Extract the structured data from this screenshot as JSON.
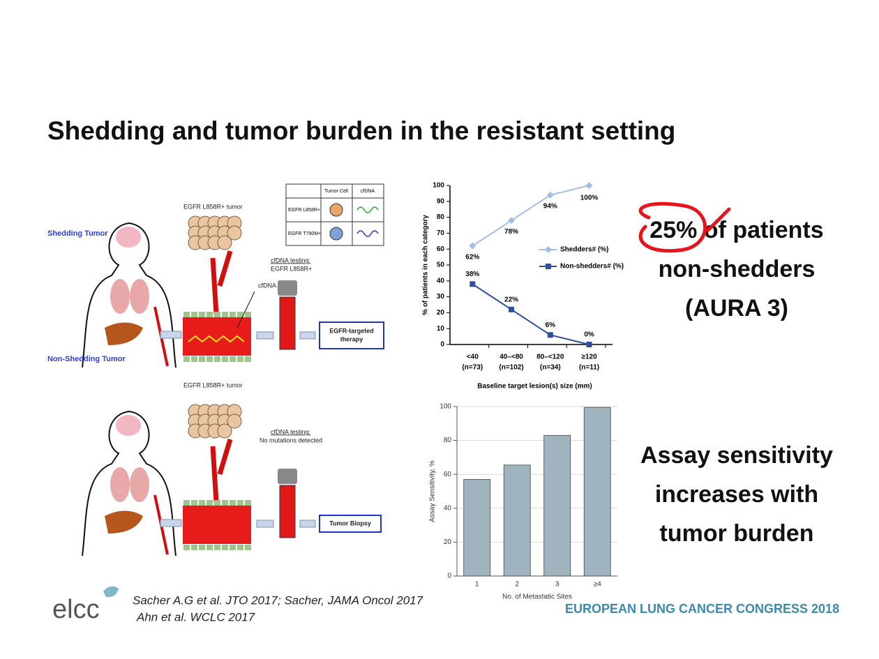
{
  "title": "Shedding and tumor burden in the resistant setting",
  "diagram": {
    "panels": [
      {
        "label": "Shedding Tumor",
        "tumor": "EGFR L858R+ tumor",
        "cfdna": "cfDNA",
        "testing": "cfDNA testing:",
        "result": "EGFR L858R+",
        "action": [
          "EGFR-targeted",
          "therapy"
        ]
      },
      {
        "label": "Non-Shedding Tumor",
        "tumor": "EGFR L858R+ tumor",
        "testing": "cfDNA testing:",
        "result": "No mutations detected",
        "action": [
          "Tumor Biopsy"
        ]
      }
    ],
    "legend_table": {
      "columns": [
        "Tumor Cell",
        "cfDNA"
      ],
      "rows": [
        "EGFR L858R+",
        "EGFR T790M+"
      ]
    }
  },
  "chart_data": [
    {
      "type": "line",
      "categories": [
        "<40",
        "40–<80",
        "80–<120",
        "≥120"
      ],
      "category_counts": [
        "(n=73)",
        "(n=102)",
        "(n=34)",
        "(n=11)"
      ],
      "xlabel": "Baseline target lesion(s) size (mm)",
      "ylabel": "% of patients in each category",
      "ylim": [
        0,
        100
      ],
      "yticks": [
        0,
        10,
        20,
        30,
        40,
        50,
        60,
        70,
        80,
        90,
        100
      ],
      "series": [
        {
          "name": "Shedders# (%)",
          "color": "#a3bde8",
          "marker": "diamond",
          "values": [
            62,
            78,
            94,
            100
          ],
          "value_labels": [
            "62%",
            "78%",
            "94%",
            "100%"
          ]
        },
        {
          "name": "Non-shedders# (%)",
          "color": "#2e4f9c",
          "marker": "square",
          "values": [
            38,
            22,
            6,
            0
          ],
          "value_labels": [
            "38%",
            "22%",
            "6%",
            "0%"
          ]
        }
      ]
    },
    {
      "type": "bar",
      "categories": [
        "1",
        "2",
        "3",
        "≥4"
      ],
      "values": [
        57,
        65.5,
        83,
        99.5
      ],
      "color": "#9fb4be",
      "xlabel": "No. of Metastatic Sites",
      "ylabel": "Assay Sensitivity, %",
      "ylim": [
        0,
        100
      ],
      "yticks": [
        0,
        20,
        40,
        60,
        80,
        100
      ],
      "grid": true
    }
  ],
  "callouts": [
    {
      "lines": [
        "25% of patients",
        "non-shedders",
        "(AURA 3)"
      ]
    },
    {
      "lines": [
        "Assay sensitivity",
        "increases with",
        "tumor burden"
      ]
    }
  ],
  "citation": [
    "Sacher A.G et al. JTO 2017; Sacher, JAMA Oncol 2017",
    "Ahn et al. WCLC 2017"
  ],
  "logo": "elcc",
  "footer": "EUROPEAN LUNG CANCER CONGRESS 2018"
}
